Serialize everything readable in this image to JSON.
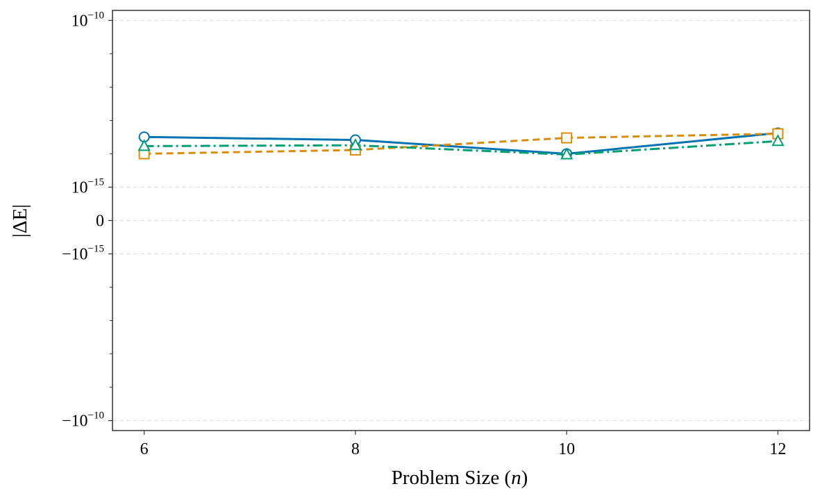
{
  "chart_data": {
    "type": "line",
    "xlabel": "Problem Size (n)",
    "ylabel": "|ΔE|",
    "x": [
      6,
      8,
      10,
      12
    ],
    "x_ticks": [
      "6",
      "8",
      "10",
      "12"
    ],
    "y_scale": "symlog",
    "y_ticks": [
      {
        "value": "1e-10",
        "label": "10",
        "exp": "−10"
      },
      {
        "value": "1e-15",
        "label": "10",
        "exp": "−15"
      },
      {
        "value": "0",
        "label": "0",
        "exp": ""
      },
      {
        "value": "-1e-15",
        "label": "−10",
        "exp": "−15"
      },
      {
        "value": "-1e-10",
        "label": "−10",
        "exp": "−10"
      }
    ],
    "grid": "horizontal dashed",
    "series": [
      {
        "values": [
          3.2e-14,
          2.6e-14,
          1e-14,
          4.2e-14
        ],
        "color": "#0072b2",
        "line": "solid",
        "marker": "circle"
      },
      {
        "values": [
          1e-14,
          1.3e-14,
          3e-14,
          4e-14
        ],
        "color": "#d98c0a",
        "line": "dashed",
        "marker": "square"
      },
      {
        "values": [
          1.7e-14,
          1.8e-14,
          9.5e-15,
          2.4e-14
        ],
        "color": "#009e73",
        "line": "dashdot",
        "marker": "triangle"
      }
    ]
  }
}
